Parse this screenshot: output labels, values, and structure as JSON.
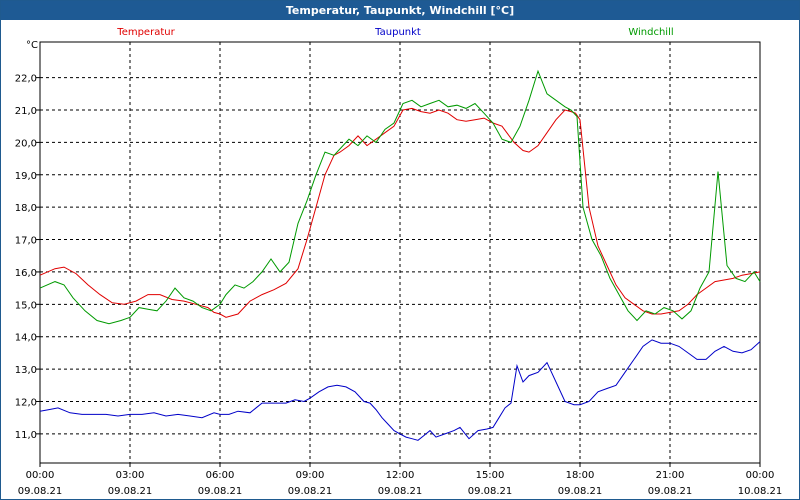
{
  "window": {
    "title": "Temperatur, Taupunkt, Windchill [°C]"
  },
  "chart_data": {
    "type": "line",
    "title": "Temperatur, Taupunkt, Windchill [°C]",
    "ylabel": "°C",
    "xlabel": "",
    "xlim": [
      0,
      24
    ],
    "ylim": [
      10.1,
      23.1
    ],
    "grid": true,
    "y_ticks": [
      "11,0",
      "12,0",
      "13,0",
      "14,0",
      "15,0",
      "16,0",
      "17,0",
      "18,0",
      "19,0",
      "20,0",
      "21,0",
      "22,0"
    ],
    "x_ticks": [
      {
        "time": "00:00",
        "date": "09.08.21"
      },
      {
        "time": "03:00",
        "date": "09.08.21"
      },
      {
        "time": "06:00",
        "date": "09.08.21"
      },
      {
        "time": "09:00",
        "date": "09.08.21"
      },
      {
        "time": "12:00",
        "date": "09.08.21"
      },
      {
        "time": "15:00",
        "date": "09.08.21"
      },
      {
        "time": "18:00",
        "date": "09.08.21"
      },
      {
        "time": "21:00",
        "date": "09.08.21"
      },
      {
        "time": "00:00",
        "date": "10.08.21"
      }
    ],
    "legend_position": "top",
    "series": [
      {
        "name": "Temperatur",
        "color": "#e00000",
        "x": [
          0,
          0.5,
          0.8,
          1.2,
          1.6,
          2.0,
          2.4,
          2.8,
          3.2,
          3.6,
          4.0,
          4.4,
          4.8,
          5.2,
          5.6,
          5.8,
          6.0,
          6.2,
          6.6,
          7.0,
          7.4,
          7.8,
          8.2,
          8.6,
          8.9,
          9.2,
          9.5,
          9.8,
          10.0,
          10.3,
          10.6,
          10.9,
          11.2,
          11.5,
          11.8,
          12.1,
          12.4,
          12.7,
          13.0,
          13.3,
          13.6,
          13.9,
          14.2,
          14.5,
          14.8,
          15.1,
          15.4,
          15.8,
          16.1,
          16.3,
          16.6,
          16.9,
          17.2,
          17.5,
          17.7,
          17.85,
          18.0,
          18.3,
          18.6,
          18.9,
          19.2,
          19.5,
          19.8,
          20.1,
          20.4,
          20.7,
          21.0,
          21.3,
          21.6,
          21.9,
          22.2,
          22.5,
          22.8,
          23.1,
          23.4,
          23.7,
          24.0
        ],
        "values": [
          15.9,
          16.1,
          16.15,
          15.95,
          15.6,
          15.3,
          15.05,
          15.0,
          15.1,
          15.3,
          15.3,
          15.15,
          15.1,
          15.0,
          14.9,
          14.75,
          14.7,
          14.6,
          14.7,
          15.1,
          15.3,
          15.45,
          15.65,
          16.1,
          17.0,
          18.0,
          19.0,
          19.6,
          19.7,
          19.9,
          20.2,
          19.9,
          20.1,
          20.3,
          20.5,
          21.0,
          21.05,
          20.95,
          20.9,
          21.0,
          20.9,
          20.7,
          20.65,
          20.7,
          20.75,
          20.6,
          20.5,
          20.0,
          19.75,
          19.7,
          19.9,
          20.3,
          20.7,
          21.0,
          20.95,
          20.9,
          20.7,
          18.0,
          16.8,
          16.2,
          15.6,
          15.2,
          15.0,
          14.8,
          14.7,
          14.7,
          14.75,
          14.8,
          15.0,
          15.3,
          15.5,
          15.7,
          15.75,
          15.8,
          15.9,
          15.95,
          16.0
        ]
      },
      {
        "name": "Taupunkt",
        "color": "#0000c8",
        "x": [
          0,
          0.3,
          0.6,
          1.0,
          1.4,
          1.8,
          2.2,
          2.6,
          3.0,
          3.4,
          3.8,
          4.2,
          4.6,
          5.0,
          5.4,
          5.8,
          6.0,
          6.3,
          6.6,
          7.0,
          7.4,
          7.8,
          8.2,
          8.5,
          8.8,
          9.0,
          9.3,
          9.6,
          9.9,
          10.2,
          10.5,
          10.8,
          11.0,
          11.2,
          11.4,
          11.6,
          11.8,
          12.0,
          12.2,
          12.4,
          12.6,
          12.8,
          13.0,
          13.2,
          13.5,
          13.8,
          14.0,
          14.3,
          14.6,
          14.9,
          15.1,
          15.3,
          15.5,
          15.7,
          15.9,
          16.1,
          16.3,
          16.6,
          16.9,
          17.2,
          17.5,
          17.8,
          18.0,
          18.3,
          18.6,
          18.9,
          19.2,
          19.5,
          19.8,
          20.1,
          20.4,
          20.7,
          21.0,
          21.3,
          21.6,
          21.9,
          22.2,
          22.5,
          22.8,
          23.1,
          23.4,
          23.7,
          24.0
        ],
        "values": [
          11.7,
          11.75,
          11.8,
          11.65,
          11.6,
          11.6,
          11.6,
          11.55,
          11.6,
          11.6,
          11.65,
          11.55,
          11.6,
          11.55,
          11.5,
          11.65,
          11.6,
          11.6,
          11.7,
          11.65,
          11.95,
          11.95,
          11.95,
          12.05,
          12.0,
          12.1,
          12.3,
          12.45,
          12.5,
          12.45,
          12.3,
          12.0,
          11.95,
          11.75,
          11.5,
          11.3,
          11.1,
          11.0,
          10.9,
          10.85,
          10.8,
          10.95,
          11.1,
          10.9,
          11.0,
          11.1,
          11.2,
          10.85,
          11.1,
          11.15,
          11.2,
          11.5,
          11.8,
          11.95,
          13.1,
          12.6,
          12.8,
          12.9,
          13.2,
          12.6,
          12.0,
          11.9,
          11.9,
          12.0,
          12.3,
          12.4,
          12.5,
          12.9,
          13.3,
          13.7,
          13.9,
          13.8,
          13.8,
          13.7,
          13.5,
          13.3,
          13.3,
          13.55,
          13.7,
          13.55,
          13.5,
          13.6,
          13.85
        ]
      },
      {
        "name": "Windchill",
        "color": "#009a00",
        "x": [
          0,
          0.5,
          0.8,
          1.1,
          1.5,
          1.9,
          2.3,
          2.7,
          3.0,
          3.3,
          3.6,
          3.9,
          4.2,
          4.5,
          4.8,
          5.1,
          5.4,
          5.7,
          6.0,
          6.2,
          6.5,
          6.8,
          7.1,
          7.4,
          7.7,
          8.0,
          8.3,
          8.6,
          8.9,
          9.2,
          9.5,
          9.8,
          10.0,
          10.3,
          10.6,
          10.9,
          11.2,
          11.5,
          11.8,
          12.1,
          12.4,
          12.7,
          13.0,
          13.3,
          13.6,
          13.9,
          14.2,
          14.5,
          14.8,
          15.1,
          15.4,
          15.7,
          16.0,
          16.3,
          16.6,
          16.9,
          17.2,
          17.5,
          17.7,
          17.9,
          18.1,
          18.4,
          18.7,
          19.0,
          19.3,
          19.6,
          19.9,
          20.2,
          20.5,
          20.8,
          21.1,
          21.4,
          21.7,
          22.0,
          22.3,
          22.6,
          22.9,
          23.2,
          23.5,
          23.8,
          24.0
        ],
        "values": [
          15.5,
          15.7,
          15.6,
          15.2,
          14.8,
          14.5,
          14.4,
          14.5,
          14.6,
          14.9,
          14.85,
          14.8,
          15.1,
          15.5,
          15.2,
          15.1,
          14.9,
          14.8,
          15.0,
          15.3,
          15.6,
          15.5,
          15.7,
          16.0,
          16.4,
          16.0,
          16.3,
          17.5,
          18.2,
          19.0,
          19.7,
          19.6,
          19.8,
          20.1,
          19.9,
          20.2,
          20.0,
          20.4,
          20.6,
          21.2,
          21.3,
          21.1,
          21.2,
          21.3,
          21.1,
          21.15,
          21.05,
          21.2,
          20.9,
          20.6,
          20.1,
          20.0,
          20.5,
          21.3,
          22.2,
          21.5,
          21.3,
          21.1,
          21.0,
          20.8,
          18.0,
          17.0,
          16.5,
          15.8,
          15.3,
          14.8,
          14.5,
          14.8,
          14.7,
          14.9,
          14.8,
          14.55,
          14.8,
          15.5,
          16.0,
          19.1,
          16.2,
          15.8,
          15.7,
          16.0,
          15.7
        ]
      }
    ]
  }
}
